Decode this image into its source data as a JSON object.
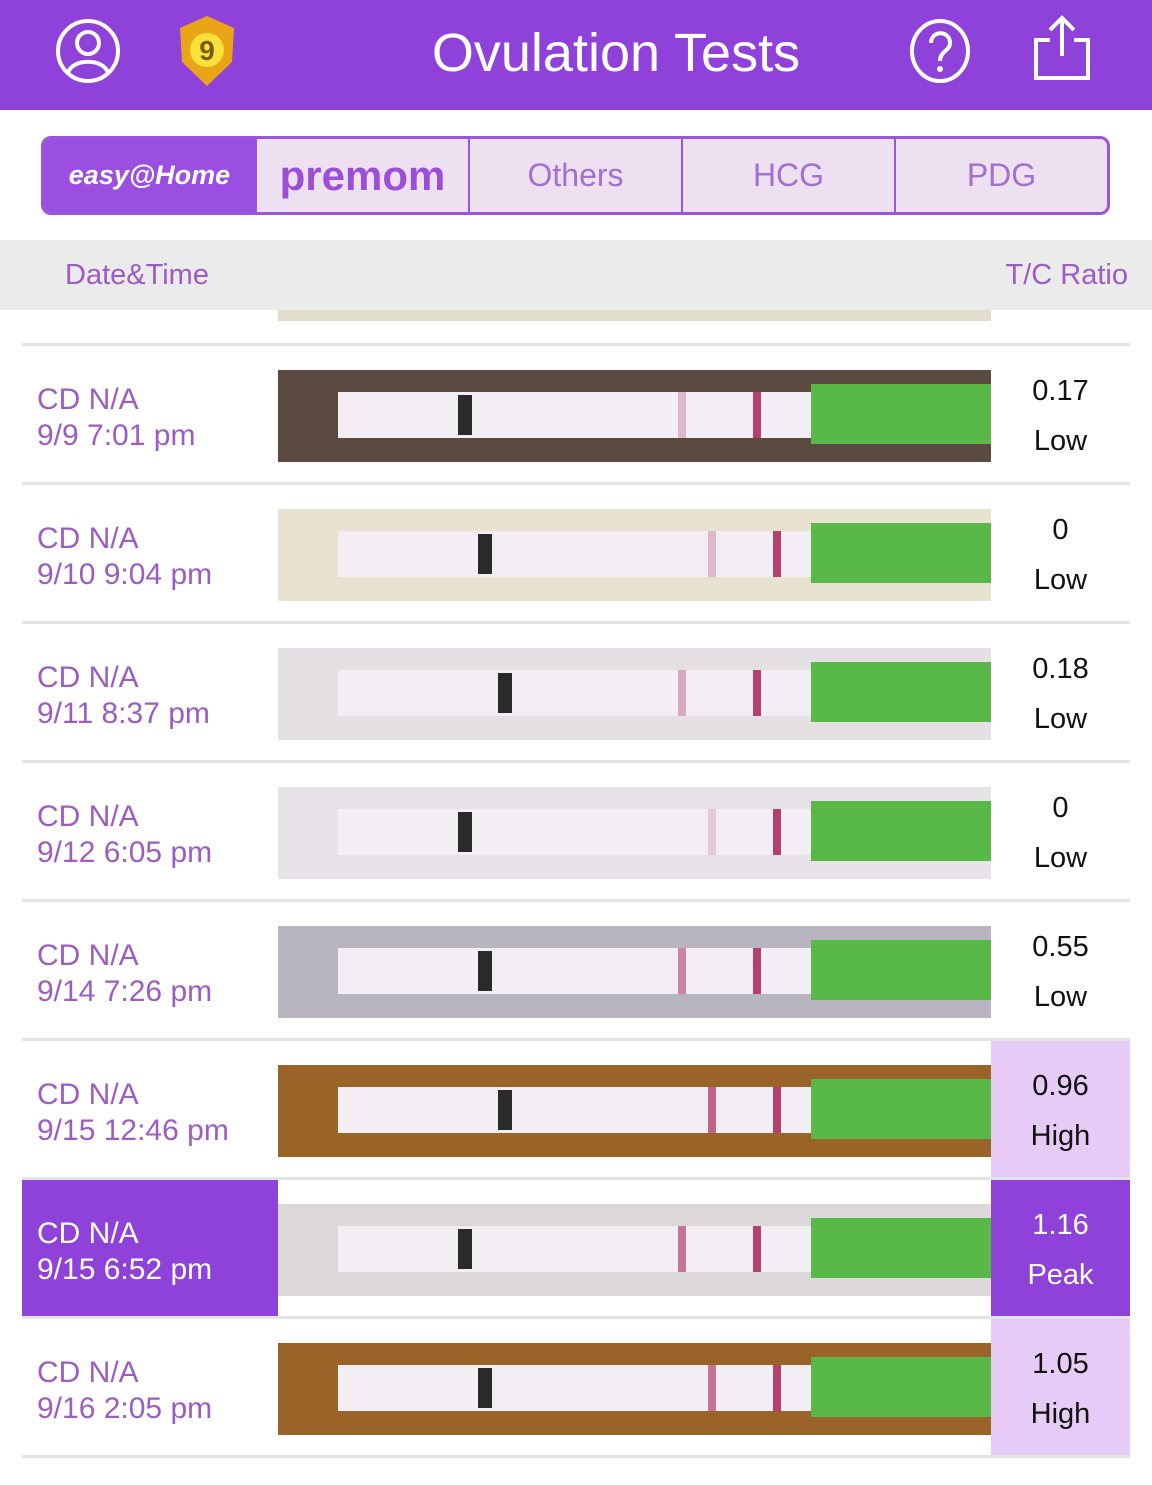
{
  "header": {
    "title": "Ovulation Tests",
    "badge_level": "9",
    "icons": [
      "profile-icon",
      "level-badge-icon",
      "help-icon",
      "share-icon"
    ],
    "color": "#8f42d9"
  },
  "brand_tabs": [
    {
      "label": "easy@Home",
      "active": true
    },
    {
      "label": "premom",
      "active": false
    },
    {
      "label": "Others",
      "active": false
    },
    {
      "label": "HCG",
      "active": false
    },
    {
      "label": "PDG",
      "active": false
    }
  ],
  "columns": {
    "date": "Date&Time",
    "ratio": "T/C Ratio"
  },
  "rows": [
    {
      "cd": "CD N/A",
      "datetime": "9/9 7:01 pm",
      "value": "0.17",
      "level": "Low",
      "bg": "#5a4a40"
    },
    {
      "cd": "CD N/A",
      "datetime": "9/10 9:04 pm",
      "value": "0",
      "level": "Low",
      "bg": "#e8e2d0"
    },
    {
      "cd": "CD N/A",
      "datetime": "9/11 8:37 pm",
      "value": "0.18",
      "level": "Low",
      "bg": "#e4e0e4"
    },
    {
      "cd": "CD N/A",
      "datetime": "9/12 6:05 pm",
      "value": "0",
      "level": "Low",
      "bg": "#e6e2e8"
    },
    {
      "cd": "CD N/A",
      "datetime": "9/14 7:26 pm",
      "value": "0.55",
      "level": "Low",
      "bg": "#b8b4c0"
    },
    {
      "cd": "CD N/A",
      "datetime": "9/15 12:46 pm",
      "value": "0.96",
      "level": "High",
      "bg": "#9a6428"
    },
    {
      "cd": "CD N/A",
      "datetime": "9/15 6:52 pm",
      "value": "1.16",
      "level": "Peak",
      "bg": "#dcd8d8"
    },
    {
      "cd": "CD N/A",
      "datetime": "9/16 2:05 pm",
      "value": "1.05",
      "level": "High",
      "bg": "#9a6428"
    }
  ]
}
